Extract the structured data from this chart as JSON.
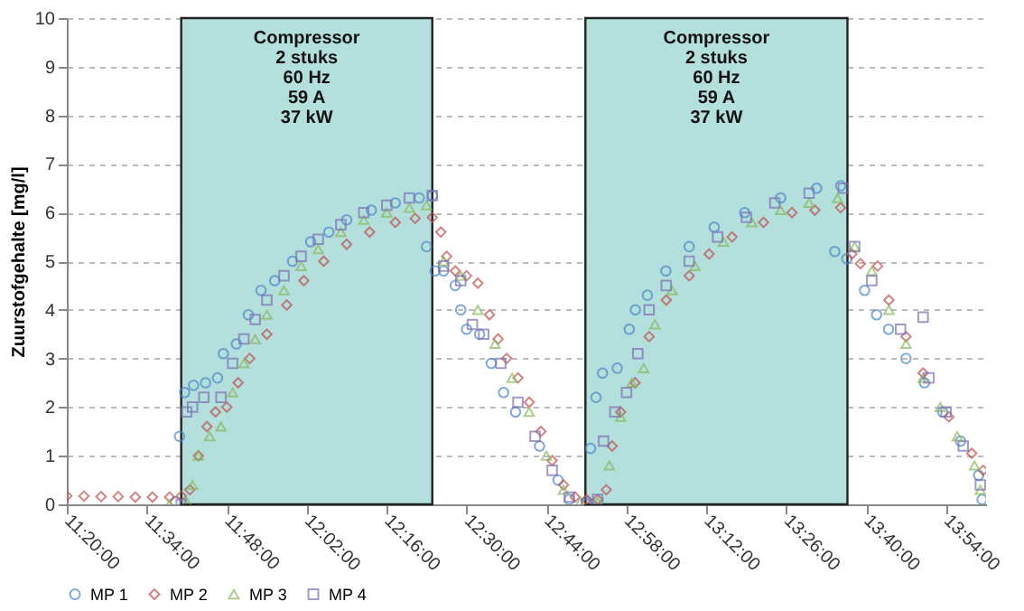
{
  "chart_data": {
    "type": "scatter",
    "ylabel": "Zuurstofgehalte [mg/l]",
    "xlim": [
      11.333,
      14.0167
    ],
    "ylim": [
      0,
      10
    ],
    "yticks": [
      0,
      1,
      2,
      3,
      4,
      5,
      6,
      7,
      8,
      9,
      10
    ],
    "xticks": [
      {
        "value": 11.3333,
        "label": "11:20:00"
      },
      {
        "value": 11.5667,
        "label": "11:34:00"
      },
      {
        "value": 11.8,
        "label": "11:48:00"
      },
      {
        "value": 12.0333,
        "label": "12:02:00"
      },
      {
        "value": 12.2667,
        "label": "12:16:00"
      },
      {
        "value": 12.5,
        "label": "12:30:00"
      },
      {
        "value": 12.7333,
        "label": "12:44:00"
      },
      {
        "value": 12.9667,
        "label": "12:58:00"
      },
      {
        "value": 13.2,
        "label": "13:12:00"
      },
      {
        "value": 13.4333,
        "label": "13:26:00"
      },
      {
        "value": 13.6667,
        "label": "13:40:00"
      },
      {
        "value": 13.9,
        "label": "13:54:00"
      }
    ],
    "grid": "y",
    "legend": "bottom",
    "bands": [
      {
        "axis": "x",
        "from": 11.667,
        "to": 12.4,
        "label": "Compressor\n2 stuks\n60 Hz\n59 A\n37 kW",
        "color": "#b3dfdd"
      },
      {
        "axis": "x",
        "from": 12.847,
        "to": 13.612,
        "label": "Compressor\n2 stuks\n60 Hz\n59 A\n37 kW",
        "color": "#b3dfdd"
      }
    ],
    "series": [
      {
        "name": "MP 1",
        "color": "#4a86c8",
        "marker": "circle",
        "x": [
          11.65,
          11.662,
          11.677,
          11.703,
          11.738,
          11.773,
          11.79,
          11.828,
          11.863,
          11.9,
          11.94,
          11.992,
          12.045,
          12.098,
          12.15,
          12.222,
          12.292,
          12.362,
          12.4,
          12.383,
          12.408,
          12.433,
          12.467,
          12.483,
          12.5,
          12.538,
          12.572,
          12.608,
          12.643,
          12.713,
          12.767,
          12.8,
          12.85,
          12.862,
          12.878,
          12.897,
          12.94,
          12.975,
          12.993,
          13.028,
          13.082,
          13.15,
          13.223,
          13.312,
          13.417,
          13.522,
          13.592,
          13.575,
          13.61,
          13.662,
          13.697,
          13.732,
          13.783,
          13.837,
          13.89,
          13.942,
          13.995,
          14.005
        ],
        "values": [
          0.05,
          1.4,
          2.3,
          2.45,
          2.5,
          2.6,
          3.1,
          3.3,
          3.9,
          4.4,
          4.6,
          5.0,
          5.4,
          5.6,
          5.85,
          6.05,
          6.2,
          6.3,
          6.35,
          5.3,
          4.8,
          4.8,
          4.5,
          4.0,
          3.6,
          3.5,
          2.9,
          2.3,
          1.9,
          1.2,
          0.5,
          0.1,
          0.05,
          1.15,
          2.2,
          2.7,
          2.8,
          3.6,
          4.0,
          4.3,
          4.8,
          5.3,
          5.7,
          6.0,
          6.3,
          6.5,
          6.55,
          5.2,
          5.05,
          4.4,
          3.9,
          3.6,
          3.0,
          2.5,
          1.9,
          1.3,
          0.6,
          0.1
        ]
      },
      {
        "name": "MP 2",
        "color": "#c0504d",
        "marker": "diamond",
        "x": [
          11.333,
          11.383,
          11.433,
          11.483,
          11.533,
          11.583,
          11.633,
          11.667,
          11.692,
          11.717,
          11.742,
          11.767,
          11.8,
          11.833,
          11.867,
          11.917,
          11.975,
          12.025,
          12.083,
          12.15,
          12.217,
          12.292,
          12.35,
          12.4,
          12.425,
          12.442,
          12.467,
          12.5,
          12.533,
          12.567,
          12.592,
          12.617,
          12.65,
          12.683,
          12.717,
          12.75,
          12.783,
          12.817,
          12.85,
          12.883,
          12.908,
          12.925,
          12.95,
          12.992,
          13.033,
          13.083,
          13.15,
          13.208,
          13.275,
          13.367,
          13.45,
          13.517,
          13.592,
          13.625,
          13.65,
          13.7,
          13.733,
          13.783,
          13.833,
          13.908,
          13.975,
          14.008
        ],
        "values": [
          0.17,
          0.17,
          0.16,
          0.16,
          0.15,
          0.15,
          0.15,
          0.17,
          0.3,
          1.0,
          1.6,
          1.9,
          2.0,
          2.5,
          3.0,
          3.5,
          4.1,
          4.6,
          5.0,
          5.35,
          5.6,
          5.8,
          5.88,
          5.9,
          5.6,
          5.1,
          4.8,
          4.7,
          4.55,
          3.9,
          3.4,
          3.0,
          2.6,
          2.1,
          1.5,
          0.9,
          0.4,
          0.15,
          0.1,
          0.1,
          0.3,
          1.2,
          1.9,
          2.5,
          3.45,
          4.2,
          4.7,
          5.15,
          5.5,
          5.8,
          6.0,
          6.05,
          6.1,
          5.15,
          4.95,
          4.9,
          4.2,
          3.45,
          2.7,
          1.8,
          1.05,
          0.7
        ]
      },
      {
        "name": "MP 3",
        "color": "#8cb85c",
        "marker": "triangle",
        "x": [
          11.633,
          11.683,
          11.7,
          11.717,
          11.75,
          11.783,
          11.817,
          11.85,
          11.883,
          11.917,
          11.967,
          12.017,
          12.067,
          12.133,
          12.2,
          12.267,
          12.333,
          12.383,
          12.433,
          12.483,
          12.533,
          12.583,
          12.633,
          12.683,
          12.733,
          12.783,
          12.833,
          12.883,
          12.917,
          12.95,
          12.983,
          13.017,
          13.05,
          13.1,
          13.167,
          13.25,
          13.333,
          13.417,
          13.5,
          13.583,
          13.633,
          13.683,
          13.733,
          13.783,
          13.833,
          13.883,
          13.933,
          13.983,
          14.0
        ],
        "values": [
          0.0,
          0.05,
          0.4,
          1.0,
          1.4,
          1.6,
          2.3,
          2.9,
          3.4,
          3.9,
          4.4,
          4.9,
          5.25,
          5.6,
          5.85,
          6.0,
          6.1,
          6.15,
          5.0,
          4.7,
          4.0,
          3.3,
          2.6,
          1.9,
          1.0,
          0.3,
          0.05,
          0.05,
          0.8,
          1.8,
          2.5,
          2.8,
          3.7,
          4.4,
          4.9,
          5.4,
          5.8,
          6.05,
          6.2,
          6.3,
          5.3,
          4.8,
          4.0,
          3.3,
          2.6,
          2.0,
          1.4,
          0.8,
          0.3
        ]
      },
      {
        "name": "MP 4",
        "color": "#7b6fb3",
        "marker": "square",
        "x": [
          11.667,
          11.683,
          11.7,
          11.733,
          11.783,
          11.817,
          11.85,
          11.883,
          11.917,
          11.967,
          12.017,
          12.067,
          12.133,
          12.2,
          12.267,
          12.333,
          12.4,
          12.433,
          12.483,
          12.517,
          12.55,
          12.6,
          12.65,
          12.7,
          12.75,
          12.8,
          12.85,
          12.883,
          12.9,
          12.933,
          12.967,
          13.0,
          13.033,
          13.083,
          13.15,
          13.233,
          13.317,
          13.4,
          13.5,
          13.6,
          13.633,
          13.683,
          13.767,
          13.833,
          13.85,
          13.9,
          13.95,
          14.0
        ],
        "values": [
          0.0,
          1.9,
          2.0,
          2.2,
          2.2,
          2.9,
          3.4,
          3.8,
          4.2,
          4.7,
          5.1,
          5.45,
          5.75,
          6.0,
          6.15,
          6.3,
          6.35,
          4.9,
          4.6,
          3.7,
          3.5,
          2.9,
          2.1,
          1.4,
          0.7,
          0.15,
          0.0,
          0.1,
          1.3,
          1.9,
          2.3,
          3.1,
          4.0,
          4.5,
          5.0,
          5.5,
          5.9,
          6.2,
          6.4,
          6.5,
          5.3,
          4.6,
          3.6,
          3.85,
          2.6,
          1.9,
          1.2,
          0.4
        ]
      }
    ]
  }
}
